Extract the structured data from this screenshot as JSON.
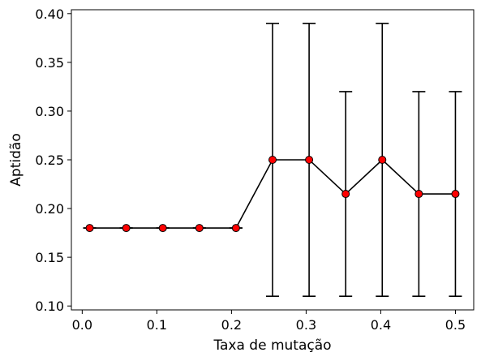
{
  "chart_data": {
    "type": "line",
    "xlabel": "Taxa de mutação",
    "ylabel": "Aptidão",
    "xlim": [
      -0.0145,
      0.5245
    ],
    "ylim": [
      0.096,
      0.404
    ],
    "xticks": [
      0.0,
      0.1,
      0.2,
      0.3,
      0.4,
      0.5
    ],
    "xtick_labels": [
      "0.0",
      "0.1",
      "0.2",
      "0.3",
      "0.4",
      "0.5"
    ],
    "yticks": [
      0.1,
      0.15,
      0.2,
      0.25,
      0.3,
      0.35,
      0.4
    ],
    "ytick_labels": [
      "0.10",
      "0.15",
      "0.20",
      "0.25",
      "0.30",
      "0.35",
      "0.40"
    ],
    "grid": false,
    "line_color": "#000000",
    "marker_color": "#ff0000",
    "marker_edge_color": "#000000",
    "series": [
      {
        "x": [
          0.01,
          0.059,
          0.108,
          0.157,
          0.206,
          0.255,
          0.304,
          0.353,
          0.402,
          0.451,
          0.5
        ],
        "y": [
          0.18,
          0.18,
          0.18,
          0.18,
          0.18,
          0.25,
          0.25,
          0.215,
          0.25,
          0.215,
          0.215
        ],
        "y_err_low": [
          0.18,
          0.18,
          0.18,
          0.18,
          0.18,
          0.11,
          0.11,
          0.11,
          0.11,
          0.11,
          0.11
        ],
        "y_err_high": [
          0.18,
          0.18,
          0.18,
          0.18,
          0.18,
          0.39,
          0.39,
          0.32,
          0.39,
          0.32,
          0.32
        ]
      }
    ]
  }
}
